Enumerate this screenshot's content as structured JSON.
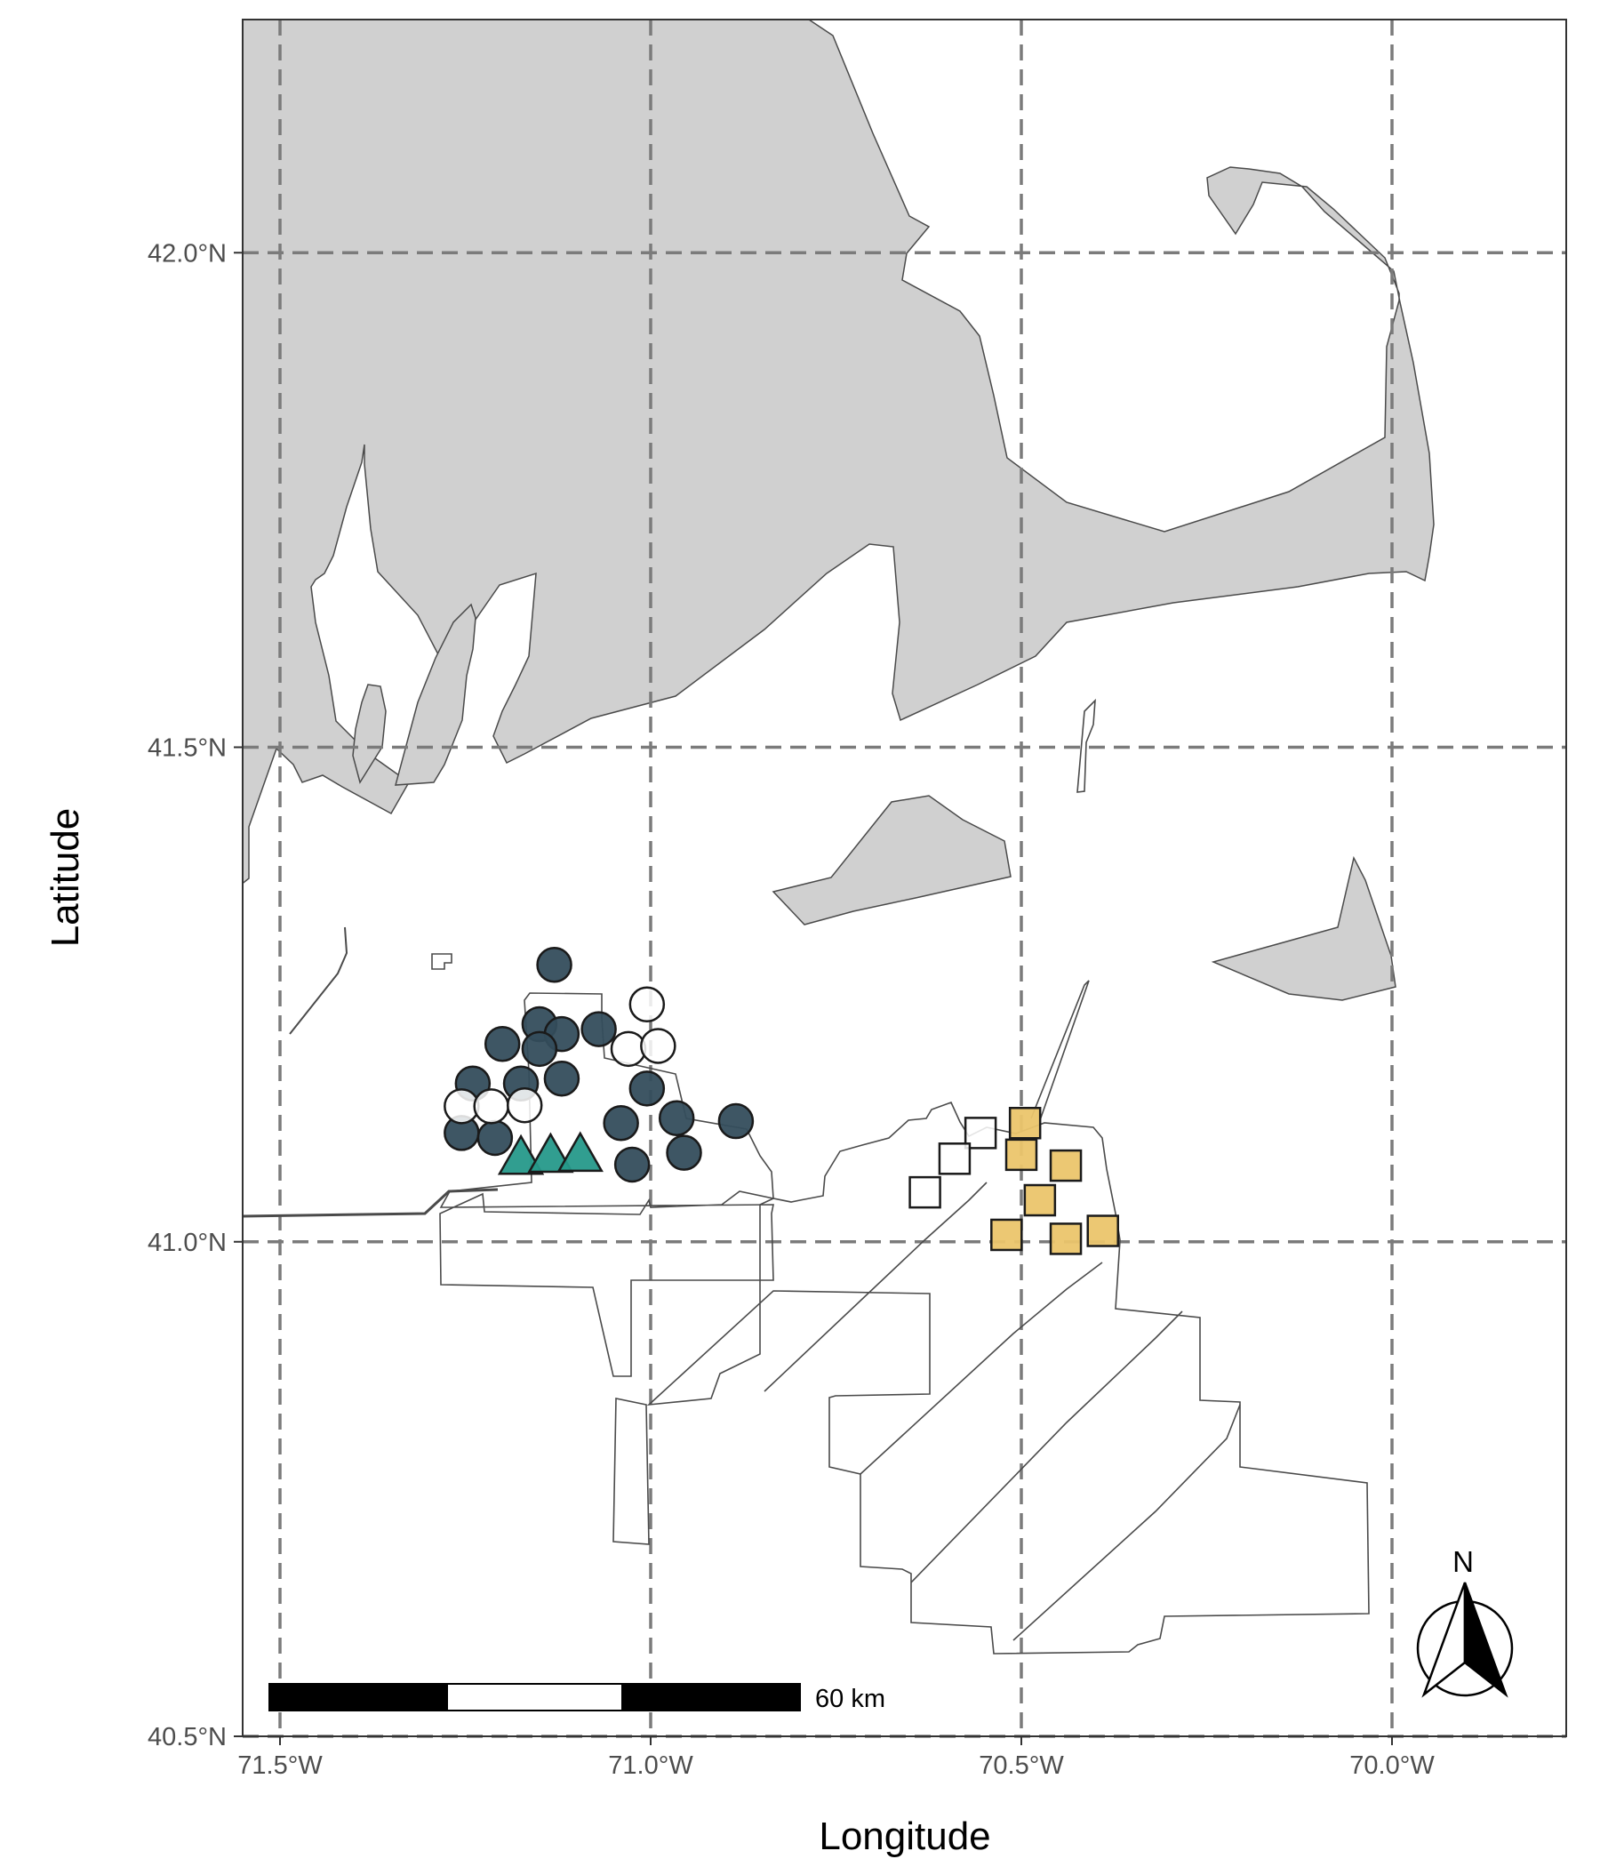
{
  "chart_data": {
    "type": "map",
    "xlabel": "Longitude",
    "ylabel": "Latitude",
    "x_ticks": [
      {
        "value": -71.5,
        "label": "71.5°W"
      },
      {
        "value": -71.0,
        "label": "71.0°W"
      },
      {
        "value": -70.5,
        "label": "70.5°W"
      },
      {
        "value": -70.0,
        "label": "70.0°W"
      }
    ],
    "y_ticks": [
      {
        "value": 40.5,
        "label": "40.5°N"
      },
      {
        "value": 41.0,
        "label": "41.0°N"
      },
      {
        "value": 41.5,
        "label": "41.5°N"
      },
      {
        "value": 42.0,
        "label": "42.0°N"
      }
    ],
    "xlim": [
      -71.55,
      -69.75
    ],
    "ylim": [
      40.5,
      42.25
    ],
    "grid": "dashed major gridlines",
    "land_color": "#d0d0d0",
    "scale_bar_label": "60 km",
    "north_arrow_label": "N",
    "series": [
      {
        "marker": "circle",
        "color": "#344d5c",
        "points": [
          [
            -71.13,
            41.28
          ],
          [
            -71.15,
            41.22
          ],
          [
            -71.12,
            41.21
          ],
          [
            -71.07,
            41.215
          ],
          [
            -71.2,
            41.2
          ],
          [
            -71.15,
            41.195
          ],
          [
            -71.24,
            41.16
          ],
          [
            -71.175,
            41.16
          ],
          [
            -71.12,
            41.165
          ],
          [
            -71.005,
            41.155
          ],
          [
            -71.255,
            41.11
          ],
          [
            -71.21,
            41.105
          ],
          [
            -71.04,
            41.12
          ],
          [
            -70.965,
            41.125
          ],
          [
            -70.885,
            41.122
          ],
          [
            -70.955,
            41.09
          ],
          [
            -71.025,
            41.078
          ]
        ]
      },
      {
        "marker": "circle",
        "color": "#ffffff",
        "points": [
          [
            -71.005,
            41.24
          ],
          [
            -71.03,
            41.195
          ],
          [
            -70.99,
            41.198
          ],
          [
            -71.255,
            41.137
          ],
          [
            -71.215,
            41.137
          ],
          [
            -71.17,
            41.138
          ]
        ]
      },
      {
        "marker": "triangle",
        "color": "#26998a",
        "points": [
          [
            -71.175,
            41.085
          ],
          [
            -71.135,
            41.087
          ],
          [
            -71.095,
            41.088
          ]
        ]
      },
      {
        "marker": "square",
        "color": "#ffffff",
        "points": [
          [
            -70.555,
            41.11
          ],
          [
            -70.59,
            41.084
          ],
          [
            -70.63,
            41.05
          ]
        ]
      },
      {
        "marker": "square",
        "color": "#ebc56b",
        "points": [
          [
            -70.495,
            41.12
          ],
          [
            -70.5,
            41.088
          ],
          [
            -70.44,
            41.077
          ],
          [
            -70.475,
            41.042
          ],
          [
            -70.52,
            41.007
          ],
          [
            -70.44,
            41.003
          ],
          [
            -70.39,
            41.011
          ]
        ]
      }
    ]
  }
}
